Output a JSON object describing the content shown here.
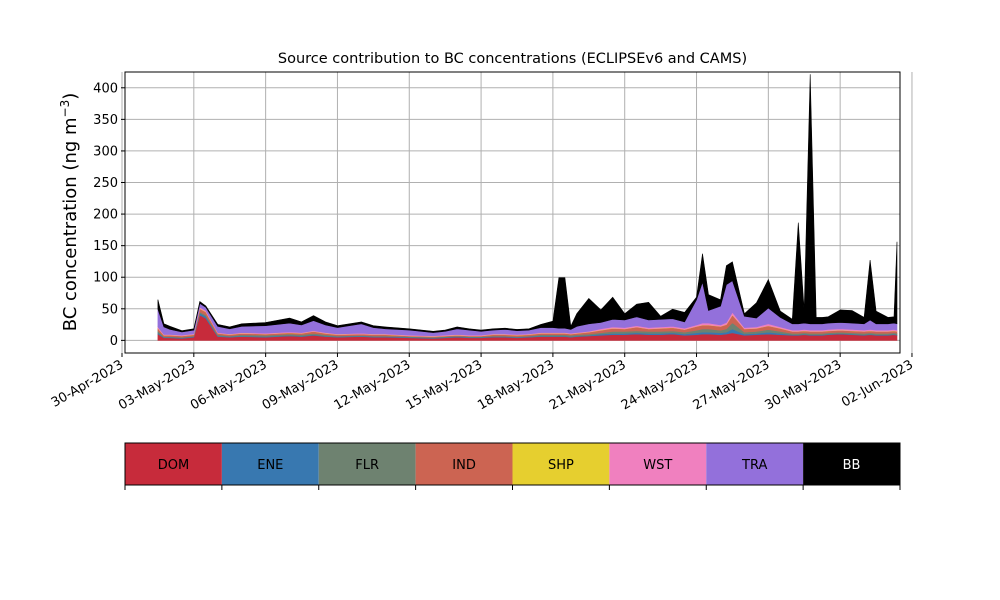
{
  "chart_data": {
    "type": "area",
    "title": "Source contribution to BC concentrations (ECLIPSEv6 and CAMS)",
    "ylabel": "BC concentration (ng m",
    "ylabel_sup": "−3",
    "ylabel_close": ")",
    "xlabel": "",
    "ylim": [
      -20,
      425
    ],
    "yticks": [
      0,
      50,
      100,
      150,
      200,
      250,
      300,
      350,
      400
    ],
    "xlim": [
      "2023-04-30T03:00",
      "2023-06-01T12:00"
    ],
    "xticks": [
      "2023-04-30",
      "2023-05-03",
      "2023-05-06",
      "2023-05-09",
      "2023-05-12",
      "2023-05-15",
      "2023-05-18",
      "2023-05-21",
      "2023-05-24",
      "2023-05-27",
      "2023-05-30",
      "2023-06-02"
    ],
    "xtick_labels": [
      "30-Apr-2023",
      "03-May-2023",
      "06-May-2023",
      "09-May-2023",
      "12-May-2023",
      "15-May-2023",
      "18-May-2023",
      "21-May-2023",
      "24-May-2023",
      "27-May-2023",
      "30-May-2023",
      "02-Jun-2023"
    ],
    "grid": true,
    "stacked": true,
    "x": [
      "2023-05-01T12:00",
      "2023-05-01T18:00",
      "2023-05-02T00:00",
      "2023-05-02T12:00",
      "2023-05-03T00:00",
      "2023-05-03T06:00",
      "2023-05-03T12:00",
      "2023-05-04T00:00",
      "2023-05-04T12:00",
      "2023-05-05T00:00",
      "2023-05-06T00:00",
      "2023-05-07T00:00",
      "2023-05-07T12:00",
      "2023-05-08T00:00",
      "2023-05-08T12:00",
      "2023-05-09T00:00",
      "2023-05-10T00:00",
      "2023-05-10T12:00",
      "2023-05-11T00:00",
      "2023-05-12T00:00",
      "2023-05-13T00:00",
      "2023-05-13T12:00",
      "2023-05-14T00:00",
      "2023-05-14T12:00",
      "2023-05-15T00:00",
      "2023-05-15T12:00",
      "2023-05-16T00:00",
      "2023-05-16T12:00",
      "2023-05-17T00:00",
      "2023-05-17T12:00",
      "2023-05-18T00:00",
      "2023-05-18T06:00",
      "2023-05-18T12:00",
      "2023-05-18T18:00",
      "2023-05-19T00:00",
      "2023-05-19T12:00",
      "2023-05-20T00:00",
      "2023-05-20T12:00",
      "2023-05-21T00:00",
      "2023-05-21T12:00",
      "2023-05-22T00:00",
      "2023-05-22T12:00",
      "2023-05-23T00:00",
      "2023-05-23T12:00",
      "2023-05-24T00:00",
      "2023-05-24T06:00",
      "2023-05-24T12:00",
      "2023-05-25T00:00",
      "2023-05-25T06:00",
      "2023-05-25T12:00",
      "2023-05-26T00:00",
      "2023-05-26T12:00",
      "2023-05-27T00:00",
      "2023-05-27T12:00",
      "2023-05-28T00:00",
      "2023-05-28T06:00",
      "2023-05-28T12:00",
      "2023-05-28T18:00",
      "2023-05-29T00:00",
      "2023-05-29T06:00",
      "2023-05-29T12:00",
      "2023-05-30T00:00",
      "2023-05-30T12:00",
      "2023-05-31T00:00",
      "2023-05-31T06:00",
      "2023-05-31T12:00",
      "2023-06-01T00:00",
      "2023-06-01T06:00",
      "2023-06-01T09:00"
    ],
    "series": [
      {
        "name": "DOM",
        "color": "#c72b3b",
        "values": [
          10,
          4,
          4,
          3,
          5,
          40,
          35,
          6,
          5,
          6,
          5,
          7,
          6,
          8,
          6,
          5,
          6,
          5,
          5,
          4,
          3,
          4,
          5,
          4,
          4,
          5,
          5,
          4,
          5,
          6,
          6,
          6,
          6,
          5,
          6,
          7,
          8,
          9,
          9,
          10,
          9,
          9,
          10,
          8,
          9,
          10,
          10,
          9,
          10,
          12,
          8,
          9,
          10,
          9,
          8,
          8,
          9,
          8,
          8,
          8,
          9,
          10,
          9,
          8,
          9,
          8,
          8,
          9,
          8
        ]
      },
      {
        "name": "ENE",
        "color": "#3878b0",
        "values": [
          2,
          1,
          1,
          1,
          1,
          3,
          3,
          1,
          1,
          1,
          1,
          1,
          1,
          1,
          1,
          1,
          1,
          1,
          1,
          1,
          1,
          1,
          1,
          1,
          1,
          1,
          1,
          1,
          1,
          1,
          1,
          1,
          1,
          1,
          1,
          1,
          2,
          2,
          2,
          2,
          2,
          2,
          2,
          2,
          3,
          3,
          3,
          3,
          3,
          6,
          2,
          2,
          3,
          2,
          1,
          1,
          1,
          1,
          1,
          1,
          1,
          1,
          1,
          1,
          1,
          1,
          1,
          1,
          1
        ]
      },
      {
        "name": "FLR",
        "color": "#6e8270",
        "values": [
          3,
          1,
          1,
          1,
          1,
          2,
          2,
          2,
          1,
          2,
          2,
          2,
          2,
          2,
          2,
          1,
          1,
          1,
          1,
          1,
          1,
          1,
          1,
          1,
          1,
          1,
          1,
          1,
          1,
          2,
          2,
          2,
          2,
          2,
          2,
          2,
          2,
          3,
          3,
          3,
          3,
          3,
          3,
          3,
          4,
          5,
          5,
          4,
          5,
          10,
          3,
          3,
          4,
          3,
          2,
          2,
          2,
          2,
          2,
          2,
          2,
          2,
          2,
          2,
          2,
          2,
          2,
          2,
          2
        ]
      },
      {
        "name": "IND",
        "color": "#cc6452",
        "values": [
          4,
          2,
          2,
          2,
          2,
          5,
          5,
          2,
          2,
          2,
          2,
          2,
          2,
          3,
          2,
          2,
          2,
          2,
          2,
          1,
          1,
          1,
          1,
          1,
          1,
          2,
          2,
          2,
          2,
          2,
          2,
          2,
          2,
          2,
          2,
          3,
          4,
          5,
          4,
          6,
          4,
          5,
          5,
          4,
          6,
          6,
          6,
          6,
          7,
          12,
          5,
          5,
          6,
          5,
          3,
          3,
          3,
          3,
          3,
          3,
          3,
          3,
          3,
          3,
          3,
          3,
          3,
          3,
          3
        ]
      },
      {
        "name": "SHP",
        "color": "#e6cf2f",
        "values": [
          0.5,
          0.3,
          0.3,
          0.3,
          0.3,
          0.5,
          0.5,
          0.3,
          0.3,
          0.3,
          0.3,
          0.3,
          0.3,
          0.3,
          0.3,
          0.3,
          0.3,
          0.3,
          0.3,
          0.3,
          0.3,
          0.3,
          0.3,
          0.3,
          0.3,
          0.3,
          0.3,
          0.3,
          0.3,
          0.3,
          0.3,
          0.3,
          0.3,
          0.3,
          0.3,
          0.3,
          0.3,
          0.3,
          0.3,
          0.3,
          0.3,
          0.3,
          0.3,
          0.3,
          0.3,
          0.3,
          0.3,
          0.3,
          0.3,
          0.5,
          0.3,
          0.3,
          0.3,
          0.3,
          0.3,
          0.3,
          0.3,
          0.3,
          0.3,
          0.3,
          0.3,
          0.3,
          0.3,
          0.3,
          0.3,
          0.3,
          0.3,
          0.3,
          0.3
        ]
      },
      {
        "name": "WST",
        "color": "#f080bf",
        "values": [
          2,
          1,
          1,
          1,
          1,
          2,
          2,
          1,
          1,
          1,
          1,
          1,
          1,
          1,
          1,
          1,
          1,
          1,
          1,
          1,
          1,
          1,
          1,
          1,
          1,
          1,
          1,
          1,
          1,
          1,
          1,
          1,
          1,
          1,
          1,
          1,
          2,
          2,
          2,
          2,
          2,
          2,
          2,
          2,
          2,
          3,
          3,
          2,
          3,
          4,
          2,
          2,
          3,
          2,
          2,
          2,
          2,
          2,
          2,
          2,
          2,
          2,
          2,
          2,
          2,
          2,
          2,
          2,
          2
        ]
      },
      {
        "name": "TRA",
        "color": "#9370db",
        "values": [
          28,
          12,
          8,
          5,
          6,
          6,
          5,
          10,
          8,
          10,
          12,
          14,
          12,
          16,
          12,
          10,
          15,
          10,
          8,
          8,
          5,
          6,
          9,
          8,
          6,
          6,
          7,
          6,
          6,
          8,
          8,
          7,
          7,
          6,
          10,
          12,
          10,
          12,
          12,
          14,
          12,
          12,
          12,
          10,
          40,
          65,
          20,
          30,
          60,
          50,
          18,
          14,
          25,
          15,
          10,
          10,
          10,
          10,
          10,
          10,
          10,
          10,
          10,
          10,
          15,
          10,
          10,
          10,
          10
        ]
      },
      {
        "name": "BB",
        "color": "#000000",
        "values": [
          15,
          5,
          5,
          2,
          2,
          3,
          2,
          3,
          3,
          4,
          5,
          8,
          5,
          8,
          5,
          3,
          3,
          3,
          3,
          2,
          2,
          2,
          3,
          2,
          2,
          2,
          2,
          2,
          2,
          5,
          10,
          80,
          80,
          5,
          20,
          40,
          20,
          35,
          10,
          20,
          28,
          5,
          15,
          15,
          4,
          45,
          25,
          10,
          30,
          30,
          4,
          24,
          45,
          10,
          7,
          160,
          20,
          395,
          10,
          10,
          10,
          20,
          20,
          10,
          95,
          20,
          10,
          10,
          130
        ]
      }
    ]
  },
  "legend_bar": {
    "items": [
      {
        "label": "DOM",
        "color": "#c72b3b",
        "text_color": "#000000"
      },
      {
        "label": "ENE",
        "color": "#3878b0",
        "text_color": "#000000"
      },
      {
        "label": "FLR",
        "color": "#6e8270",
        "text_color": "#000000"
      },
      {
        "label": "IND",
        "color": "#cc6452",
        "text_color": "#000000"
      },
      {
        "label": "SHP",
        "color": "#e6cf2f",
        "text_color": "#000000"
      },
      {
        "label": "WST",
        "color": "#f080bf",
        "text_color": "#000000"
      },
      {
        "label": "TRA",
        "color": "#9370db",
        "text_color": "#000000"
      },
      {
        "label": "BB",
        "color": "#000000",
        "text_color": "#ffffff"
      }
    ]
  }
}
